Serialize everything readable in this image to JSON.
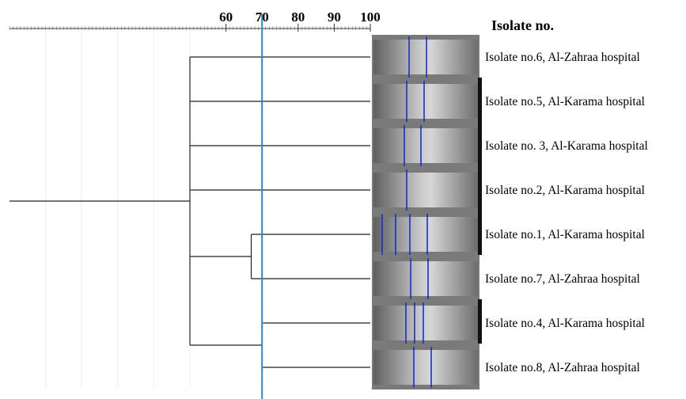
{
  "scale": {
    "xlim": [
      0,
      100
    ],
    "ticks": [
      60,
      70,
      80,
      90,
      100
    ],
    "minor_ticks": [
      10,
      20,
      30,
      40,
      50
    ]
  },
  "cutoff": 70,
  "node_heights": [
    50,
    67,
    70
  ],
  "column_title": "Isolate no.",
  "isolates": [
    "Isolate no.6, Al-Zahraa hospital",
    "Isolate no.5, Al-Karama hospital",
    "Isolate no. 3, Al-Karama hospital",
    "Isolate no.2, Al-Karama hospital",
    "Isolate no.1, Al-Karama hospital",
    "Isolate no.7, Al-Zahraa hospital",
    "Isolate no.4, Al-Karama hospital",
    "Isolate no.8, Al-Zahraa hospital"
  ]
}
